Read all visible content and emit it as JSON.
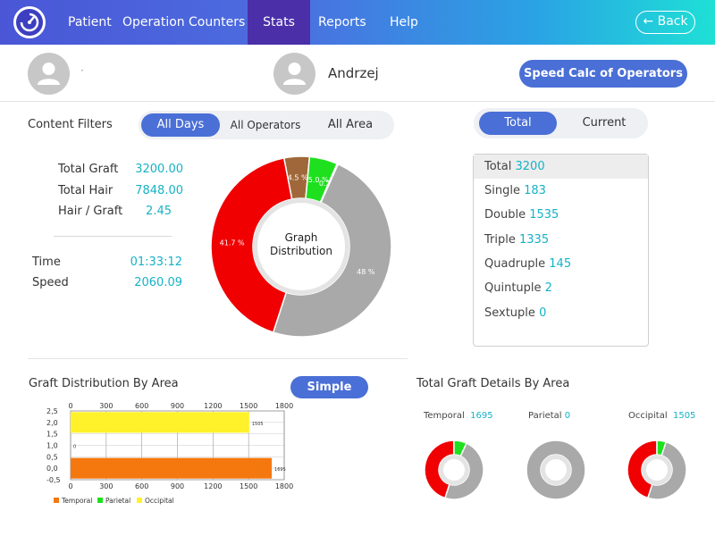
{
  "nav": {
    "items": [
      "Patient",
      "Operation",
      "Counters",
      "Stats",
      "Reports",
      "Help"
    ],
    "active": "Stats",
    "back_label": "Back",
    "back_icon": "arrow-left-icon",
    "logo_icon": "gauge-logo-icon"
  },
  "header": {
    "left_name": "·",
    "operator_name": "Andrzej",
    "speed_button": "Speed Calc of Operators"
  },
  "filters": {
    "title": "Content Filters",
    "options": [
      "All Days",
      "All Operators",
      "All Area"
    ],
    "active": "All Days"
  },
  "toggle": {
    "options": [
      "Total",
      "Current"
    ],
    "active": "Total"
  },
  "stats": {
    "total_graft_label": "Total Graft",
    "total_graft_value": "3200.00",
    "total_hair_label": "Total Hair",
    "total_hair_value": "7848.00",
    "hair_graft_label": "Hair / Graft",
    "hair_graft_value": "2.45",
    "time_label": "Time",
    "time_value": "01:33:12",
    "speed_label": "Speed",
    "speed_value": "2060.09"
  },
  "donut": {
    "center_line1": "Graph",
    "center_line2": "Distribution",
    "labels": [
      "41.7 %",
      "4.5 %",
      "5.0 %",
      "0.2 %",
      "48 %"
    ]
  },
  "totals_list": [
    {
      "label": "Total",
      "value": "3200"
    },
    {
      "label": "Single",
      "value": "183"
    },
    {
      "label": "Double",
      "value": "1535"
    },
    {
      "label": "Triple",
      "value": "1335"
    },
    {
      "label": "Quadruple",
      "value": "145"
    },
    {
      "label": "Quintuple",
      "value": "2"
    },
    {
      "label": "Sextuple",
      "value": "0"
    }
  ],
  "graft_by_area": {
    "title": "Graft Distribution By Area",
    "simple_button": "Simple"
  },
  "details_by_area": {
    "title": "Total Graft Details By Area",
    "areas": [
      {
        "label": "Temporal",
        "value": "1695"
      },
      {
        "label": "Parietal",
        "value": "0"
      },
      {
        "label": "Occipital",
        "value": "1505"
      }
    ]
  },
  "colors": {
    "accent": "#4a6fd6",
    "teal": "#16b2c6",
    "red": "#f00000",
    "grey": "#a9a9a9",
    "brown": "#a0683a",
    "green": "#1ee01e",
    "orange": "#f5780f",
    "yellow": "#fff22a"
  },
  "chart_data": [
    {
      "type": "pie",
      "values": [
        41.7,
        4.5,
        5.0,
        0.2,
        48.0
      ],
      "labels": [
        "41.7 %",
        "4.5 %",
        "5.0 %",
        "0.2 %",
        "48 %"
      ],
      "colors": [
        "#f00000",
        "#a0683a",
        "#1ee01e",
        "#d8d8d8",
        "#a9a9a9"
      ]
    },
    {
      "type": "bar",
      "orientation": "horizontal",
      "xticks": [
        "0",
        "300",
        "600",
        "900",
        "1200",
        "1500",
        "1800"
      ],
      "yticks": [
        "2,5",
        "2,0",
        "1,5",
        "1,0",
        "0,5",
        "0,0",
        "-0,5"
      ],
      "xlim": [
        0,
        1800
      ],
      "ylim": [
        -0.5,
        2.5
      ],
      "series": [
        {
          "name": "Temporal",
          "color": "#f5780f",
          "y": 0,
          "value": 1695,
          "label": "1695"
        },
        {
          "name": "Parietal",
          "color": "#1ee01e",
          "y": 1,
          "value": 0,
          "label": "0"
        },
        {
          "name": "Occipital",
          "color": "#fff22a",
          "y": 2,
          "value": 1505,
          "label": "1505"
        }
      ],
      "legend": [
        "Temporal",
        "Parietal",
        "Occipital"
      ],
      "grid": true
    },
    {
      "type": "pie",
      "area": "Temporal",
      "values": [
        48,
        45,
        7
      ],
      "colors": [
        "#a9a9a9",
        "#f00000",
        "#1ee01e"
      ]
    },
    {
      "type": "pie",
      "area": "Parietal",
      "values": [
        100
      ],
      "colors": [
        "#a9a9a9"
      ]
    },
    {
      "type": "pie",
      "area": "Occipital",
      "values": [
        50,
        45,
        5
      ],
      "colors": [
        "#a9a9a9",
        "#f00000",
        "#1ee01e"
      ]
    }
  ]
}
